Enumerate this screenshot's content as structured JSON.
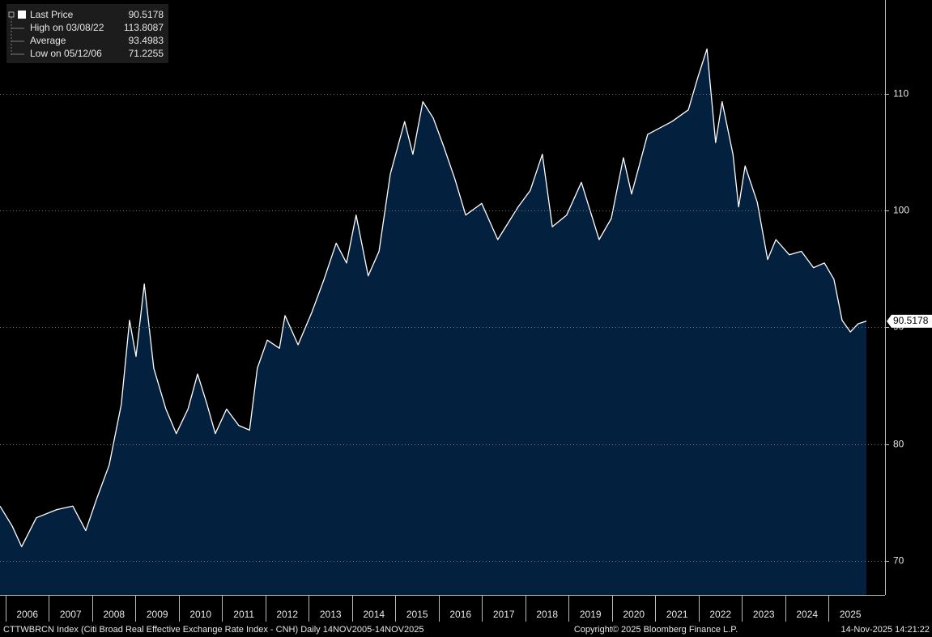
{
  "chart_data": {
    "type": "area",
    "legend_rows": [
      {
        "label": "High on 03/08/22",
        "value": "113.8087"
      },
      {
        "label": "Average",
        "value": "93.4983"
      },
      {
        "label": "Low on 05/12/06",
        "value": "71.2255"
      }
    ],
    "last_value_label": "90.5178",
    "footer_left": "CTTWBRCN Index (Citi Broad Real Effective Exchange Rate Index - CNH) Daily 14NOV2005-14NOV2025",
    "footer_center": "Copyright© 2025 Bloomberg Finance L.P.",
    "footer_right": "14-Nov-2025 14:21:22",
    "x": [
      2005.87,
      2006.15,
      2006.37,
      2006.71,
      2007.18,
      2007.55,
      2007.85,
      2008.11,
      2008.39,
      2008.67,
      2008.86,
      2009.01,
      2009.2,
      2009.42,
      2009.7,
      2009.94,
      2010.21,
      2010.43,
      2010.65,
      2010.84,
      2011.1,
      2011.38,
      2011.63,
      2011.81,
      2012.04,
      2012.32,
      2012.45,
      2012.75,
      2013.07,
      2013.35,
      2013.63,
      2013.87,
      2014.09,
      2014.37,
      2014.62,
      2014.88,
      2015.21,
      2015.4,
      2015.63,
      2015.87,
      2016.11,
      2016.37,
      2016.62,
      2016.99,
      2017.36,
      2017.83,
      2018.11,
      2018.39,
      2018.62,
      2018.95,
      2019.29,
      2019.7,
      2019.98,
      2020.26,
      2020.45,
      2020.82,
      2021.38,
      2021.76,
      2021.98,
      2022.19,
      2022.39,
      2022.54,
      2022.79,
      2022.92,
      2023.07,
      2023.35,
      2023.59,
      2023.78,
      2024.09,
      2024.37,
      2024.65,
      2024.9,
      2025.12,
      2025.31,
      2025.5,
      2025.68,
      2025.87
    ],
    "series": [
      {
        "name": "Last Price",
        "color": "#ffffff",
        "fill": "#04203f",
        "values": [
          74.7,
          73.0,
          71.2255,
          73.7,
          74.4,
          74.7,
          72.6,
          75.4,
          78.2,
          83.4,
          90.6,
          87.5,
          93.7,
          86.5,
          83.0,
          80.9,
          83.0,
          86.0,
          83.4,
          80.9,
          83.0,
          81.6,
          81.2,
          86.5,
          88.9,
          88.2,
          91.0,
          88.5,
          91.3,
          94.1,
          97.2,
          95.5,
          99.6,
          94.4,
          96.5,
          103.1,
          107.6,
          104.8,
          109.3,
          107.9,
          105.5,
          102.7,
          99.6,
          100.6,
          97.5,
          100.3,
          101.7,
          104.8,
          98.6,
          99.6,
          102.4,
          97.5,
          99.3,
          104.5,
          101.4,
          106.5,
          107.6,
          108.6,
          111.4,
          113.8087,
          105.8,
          109.3,
          104.8,
          100.3,
          103.8,
          100.7,
          95.8,
          97.5,
          96.2,
          96.5,
          95.1,
          95.5,
          94.1,
          90.6,
          89.6,
          90.3,
          90.5178
        ]
      }
    ],
    "xlim": [
      2005.87,
      2026.3
    ],
    "xticks": [
      {
        "value": 2006.5,
        "label": "2006"
      },
      {
        "value": 2007.5,
        "label": "2007"
      },
      {
        "value": 2008.5,
        "label": "2008"
      },
      {
        "value": 2009.5,
        "label": "2009"
      },
      {
        "value": 2010.5,
        "label": "2010"
      },
      {
        "value": 2011.5,
        "label": "2011"
      },
      {
        "value": 2012.5,
        "label": "2012"
      },
      {
        "value": 2013.5,
        "label": "2013"
      },
      {
        "value": 2014.5,
        "label": "2014"
      },
      {
        "value": 2015.5,
        "label": "2015"
      },
      {
        "value": 2016.5,
        "label": "2016"
      },
      {
        "value": 2017.5,
        "label": "2017"
      },
      {
        "value": 2018.5,
        "label": "2018"
      },
      {
        "value": 2019.5,
        "label": "2019"
      },
      {
        "value": 2020.5,
        "label": "2020"
      },
      {
        "value": 2021.5,
        "label": "2021"
      },
      {
        "value": 2022.5,
        "label": "2022"
      },
      {
        "value": 2023.5,
        "label": "2023"
      },
      {
        "value": 2024.5,
        "label": "2024"
      },
      {
        "value": 2025.5,
        "label": "2025"
      }
    ],
    "ylim": [
      67.1,
      118
    ],
    "yticks": [
      70,
      80,
      90,
      100,
      110
    ],
    "grid": true
  }
}
